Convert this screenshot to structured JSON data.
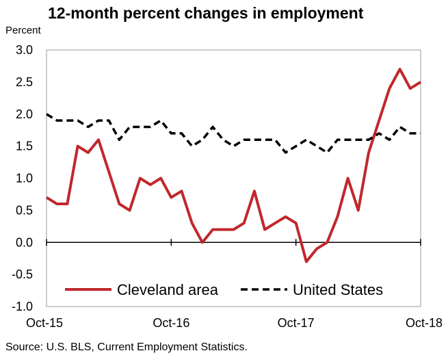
{
  "chart_data": {
    "type": "line",
    "title": "12-month percent changes in employment",
    "ylabel": "Percent",
    "source": "Source: U.S. BLS, Current Employment Statistics.",
    "ylim": [
      -1.0,
      3.0
    ],
    "yticks": [
      "3.0",
      "2.5",
      "2.0",
      "1.5",
      "1.0",
      "0.5",
      "0.0",
      "-0.5",
      "-1.0"
    ],
    "ytick_values": [
      3.0,
      2.5,
      2.0,
      1.5,
      1.0,
      0.5,
      0.0,
      -0.5,
      -1.0
    ],
    "x_tick_labels": [
      "Oct-15",
      "Oct-16",
      "Oct-17",
      "Oct-18"
    ],
    "x": [
      "Oct-15",
      "Nov-15",
      "Dec-15",
      "Jan-16",
      "Feb-16",
      "Mar-16",
      "Apr-16",
      "May-16",
      "Jun-16",
      "Jul-16",
      "Aug-16",
      "Sep-16",
      "Oct-16",
      "Nov-16",
      "Dec-16",
      "Jan-17",
      "Feb-17",
      "Mar-17",
      "Apr-17",
      "May-17",
      "Jun-17",
      "Jul-17",
      "Aug-17",
      "Sep-17",
      "Oct-17",
      "Nov-17",
      "Dec-17",
      "Jan-18",
      "Feb-18",
      "Mar-18",
      "Apr-18",
      "May-18",
      "Jun-18",
      "Jul-18",
      "Aug-18",
      "Sep-18",
      "Oct-18"
    ],
    "legend_position": "bottom",
    "grid": false,
    "series": [
      {
        "name": "Cleveland area",
        "color": "#C0282D",
        "style": "solid",
        "values": [
          0.7,
          0.6,
          0.6,
          1.5,
          1.4,
          1.6,
          1.1,
          0.6,
          0.5,
          1.0,
          0.9,
          1.0,
          0.7,
          0.8,
          0.3,
          0.0,
          0.2,
          0.2,
          0.2,
          0.3,
          0.8,
          0.2,
          0.3,
          0.4,
          0.3,
          -0.3,
          -0.1,
          0.0,
          0.4,
          1.0,
          0.5,
          1.4,
          1.9,
          2.4,
          2.7,
          2.4,
          2.5
        ]
      },
      {
        "name": "United States",
        "color": "#000000",
        "style": "dashed",
        "values": [
          2.0,
          1.9,
          1.9,
          1.9,
          1.8,
          1.9,
          1.9,
          1.6,
          1.8,
          1.8,
          1.8,
          1.9,
          1.7,
          1.7,
          1.5,
          1.6,
          1.8,
          1.6,
          1.5,
          1.6,
          1.6,
          1.6,
          1.6,
          1.4,
          1.5,
          1.6,
          1.5,
          1.4,
          1.6,
          1.6,
          1.6,
          1.6,
          1.7,
          1.6,
          1.8,
          1.7,
          1.7
        ]
      }
    ]
  }
}
